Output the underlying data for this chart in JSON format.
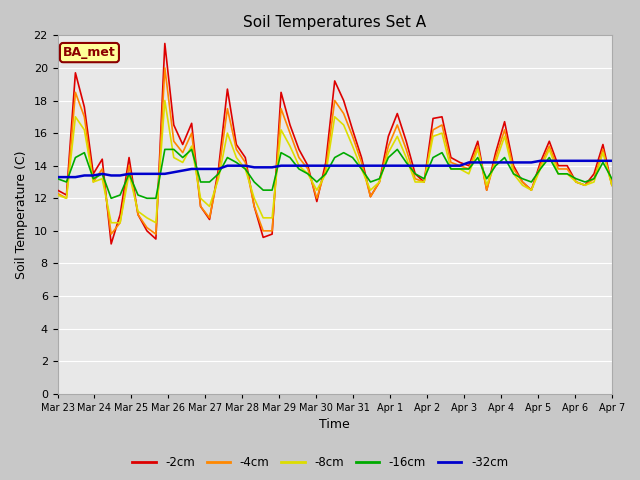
{
  "title": "Soil Temperatures Set A",
  "xlabel": "Time",
  "ylabel": "Soil Temperature (C)",
  "ylim": [
    0,
    22
  ],
  "yticks": [
    0,
    2,
    4,
    6,
    8,
    10,
    12,
    14,
    16,
    18,
    20,
    22
  ],
  "fig_bg_color": "#c8c8c8",
  "plot_bg_color": "#e8e8e8",
  "annotation": "BA_met",
  "annotation_color": "#8b0000",
  "annotation_bg": "#ffff99",
  "legend_entries": [
    "-2cm",
    "-4cm",
    "-8cm",
    "-16cm",
    "-32cm"
  ],
  "line_colors": [
    "#dd0000",
    "#ff8800",
    "#dddd00",
    "#00aa00",
    "#0000cc"
  ],
  "line_widths": [
    1.2,
    1.2,
    1.2,
    1.2,
    1.8
  ],
  "x_labels": [
    "Mar 23",
    "Mar 24",
    "Mar 25",
    "Mar 26",
    "Mar 27",
    "Mar 28",
    "Mar 29",
    "Mar 30",
    "Mar 31",
    "Apr 1",
    "Apr 2",
    "Apr 3",
    "Apr 4",
    "Apr 5",
    "Apr 6",
    "Apr 7"
  ],
  "depth_2cm": [
    12.5,
    12.2,
    19.7,
    17.6,
    13.5,
    14.4,
    9.2,
    11.0,
    14.5,
    11.0,
    10.0,
    9.5,
    21.5,
    16.5,
    15.3,
    16.6,
    11.5,
    10.7,
    13.8,
    18.7,
    15.3,
    14.5,
    11.5,
    9.6,
    9.8,
    18.5,
    16.5,
    15.0,
    14.0,
    11.8,
    14.2,
    19.2,
    18.0,
    16.2,
    14.5,
    12.1,
    13.0,
    15.8,
    17.2,
    15.5,
    13.5,
    13.0,
    16.9,
    17.0,
    14.5,
    14.2,
    14.0,
    15.5,
    12.5,
    14.8,
    16.7,
    14.0,
    13.0,
    12.5,
    14.2,
    15.5,
    14.0,
    14.0,
    13.0,
    12.8,
    13.5,
    15.3,
    12.8
  ],
  "depth_4cm": [
    12.3,
    12.0,
    18.5,
    17.0,
    13.0,
    13.8,
    9.8,
    10.5,
    14.0,
    11.0,
    10.2,
    9.8,
    20.0,
    15.5,
    14.8,
    16.0,
    11.5,
    10.8,
    13.5,
    17.5,
    15.0,
    14.2,
    11.5,
    10.0,
    10.0,
    17.5,
    16.0,
    14.5,
    13.8,
    12.0,
    13.8,
    18.0,
    17.2,
    15.8,
    14.2,
    12.1,
    13.0,
    15.2,
    16.5,
    15.0,
    13.2,
    13.0,
    16.2,
    16.5,
    14.2,
    14.0,
    13.8,
    15.2,
    12.5,
    14.5,
    16.2,
    13.8,
    13.0,
    12.5,
    14.0,
    15.2,
    13.8,
    13.8,
    13.0,
    12.8,
    13.2,
    15.0,
    12.8
  ],
  "depth_8cm": [
    12.2,
    12.0,
    17.0,
    16.2,
    13.0,
    13.2,
    10.5,
    10.5,
    13.5,
    11.2,
    10.8,
    10.5,
    18.0,
    14.5,
    14.2,
    15.2,
    12.0,
    11.5,
    13.2,
    16.0,
    14.5,
    13.8,
    12.0,
    10.8,
    10.8,
    16.2,
    15.2,
    14.0,
    13.5,
    12.5,
    13.5,
    17.0,
    16.5,
    15.2,
    13.8,
    12.5,
    13.0,
    14.8,
    15.8,
    14.5,
    13.0,
    13.0,
    15.8,
    16.0,
    13.8,
    13.8,
    13.5,
    15.0,
    12.8,
    14.2,
    15.8,
    13.5,
    12.8,
    12.5,
    13.8,
    15.0,
    13.5,
    13.5,
    13.0,
    12.8,
    13.0,
    14.8,
    12.8
  ],
  "depth_16cm": [
    13.2,
    13.0,
    14.5,
    14.8,
    13.2,
    13.5,
    12.0,
    12.2,
    13.5,
    12.2,
    12.0,
    12.0,
    15.0,
    15.0,
    14.5,
    15.0,
    13.0,
    13.0,
    13.5,
    14.5,
    14.2,
    13.8,
    13.0,
    12.5,
    12.5,
    14.8,
    14.5,
    13.8,
    13.5,
    13.0,
    13.5,
    14.5,
    14.8,
    14.5,
    13.8,
    13.0,
    13.2,
    14.5,
    15.0,
    14.2,
    13.5,
    13.2,
    14.5,
    14.8,
    13.8,
    13.8,
    13.8,
    14.5,
    13.2,
    14.0,
    14.5,
    13.5,
    13.2,
    13.0,
    13.8,
    14.5,
    13.5,
    13.5,
    13.2,
    13.0,
    13.2,
    14.2,
    13.2
  ],
  "depth_32cm": [
    13.3,
    13.3,
    13.3,
    13.4,
    13.4,
    13.5,
    13.4,
    13.4,
    13.5,
    13.5,
    13.5,
    13.5,
    13.5,
    13.6,
    13.7,
    13.8,
    13.8,
    13.8,
    13.8,
    14.0,
    14.0,
    14.0,
    13.9,
    13.9,
    13.9,
    14.0,
    14.0,
    14.0,
    14.0,
    14.0,
    14.0,
    14.0,
    14.0,
    14.0,
    14.0,
    14.0,
    14.0,
    14.0,
    14.0,
    14.0,
    14.0,
    14.0,
    14.0,
    14.0,
    14.0,
    14.0,
    14.2,
    14.2,
    14.2,
    14.2,
    14.2,
    14.2,
    14.2,
    14.2,
    14.3,
    14.3,
    14.3,
    14.3,
    14.3,
    14.3,
    14.3,
    14.3,
    14.3
  ]
}
